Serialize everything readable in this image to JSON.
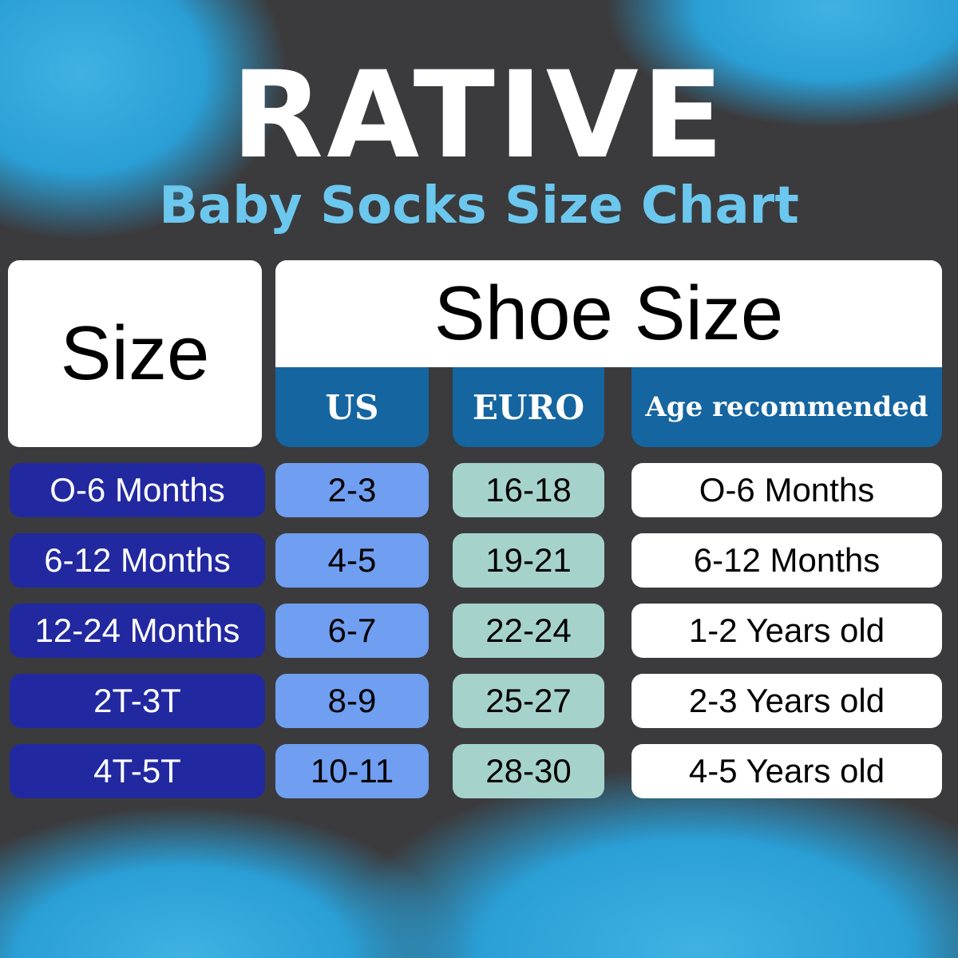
{
  "brand": "RATIVE",
  "subtitle": "Baby Socks Size Chart",
  "headers": {
    "size": "Size",
    "shoe_size": "Shoe Size",
    "us": "US",
    "euro": "EURO",
    "age": "Age recommended"
  },
  "rows": [
    {
      "size": "O-6 Months",
      "us": "2-3",
      "euro": "16-18",
      "age": "O-6 Months"
    },
    {
      "size": "6-12 Months",
      "us": "4-5",
      "euro": "19-21",
      "age": "6-12 Months"
    },
    {
      "size": "12-24 Months",
      "us": "6-7",
      "euro": "22-24",
      "age": "1-2 Years old"
    },
    {
      "size": "2T-3T",
      "us": "8-9",
      "euro": "25-27",
      "age": "2-3 Years old"
    },
    {
      "size": "4T-5T",
      "us": "10-11",
      "euro": "28-30",
      "age": "4-5 Years old"
    }
  ],
  "colors": {
    "background": "#3b3b3d",
    "header": "#1565a0",
    "size_cell": "#2229a0",
    "us_cell": "#709ef0",
    "euro_cell": "#a5d3cc",
    "accent": "#6cc7ee"
  }
}
